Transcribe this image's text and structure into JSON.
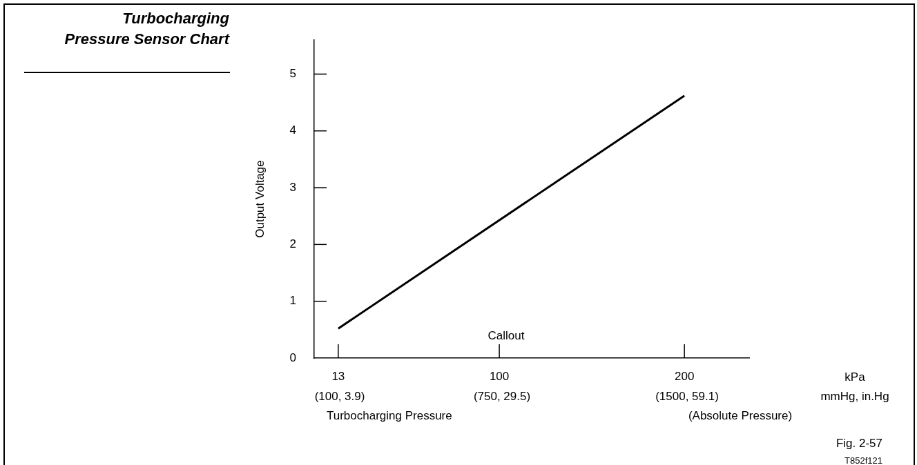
{
  "chart_data": {
    "type": "line",
    "title": "Turbocharging Pressure Sensor Chart",
    "xlabel": "Turbocharging Pressure",
    "ylabel": "Output Voltage",
    "x": [
      13,
      200
    ],
    "series": [
      {
        "color": "#000000",
        "values": [
          0.52,
          4.62
        ]
      }
    ],
    "xlim": [
      0,
      235
    ],
    "ylim": [
      0,
      5.6
    ],
    "xticks": [
      13,
      100,
      200
    ],
    "yticks": [
      0,
      1,
      2,
      3,
      4,
      5
    ],
    "grid": false,
    "legend": false,
    "marker": "none",
    "line_style": "solid",
    "annotations": [
      "(100, 3.9)",
      "(750, 29.5)",
      "(1500, 59.1)",
      "Callout",
      "kPa",
      "mmHg, in.Hg",
      "(Absolute Pressure)",
      "Fig. 2-57",
      "T852f121"
    ]
  }
}
